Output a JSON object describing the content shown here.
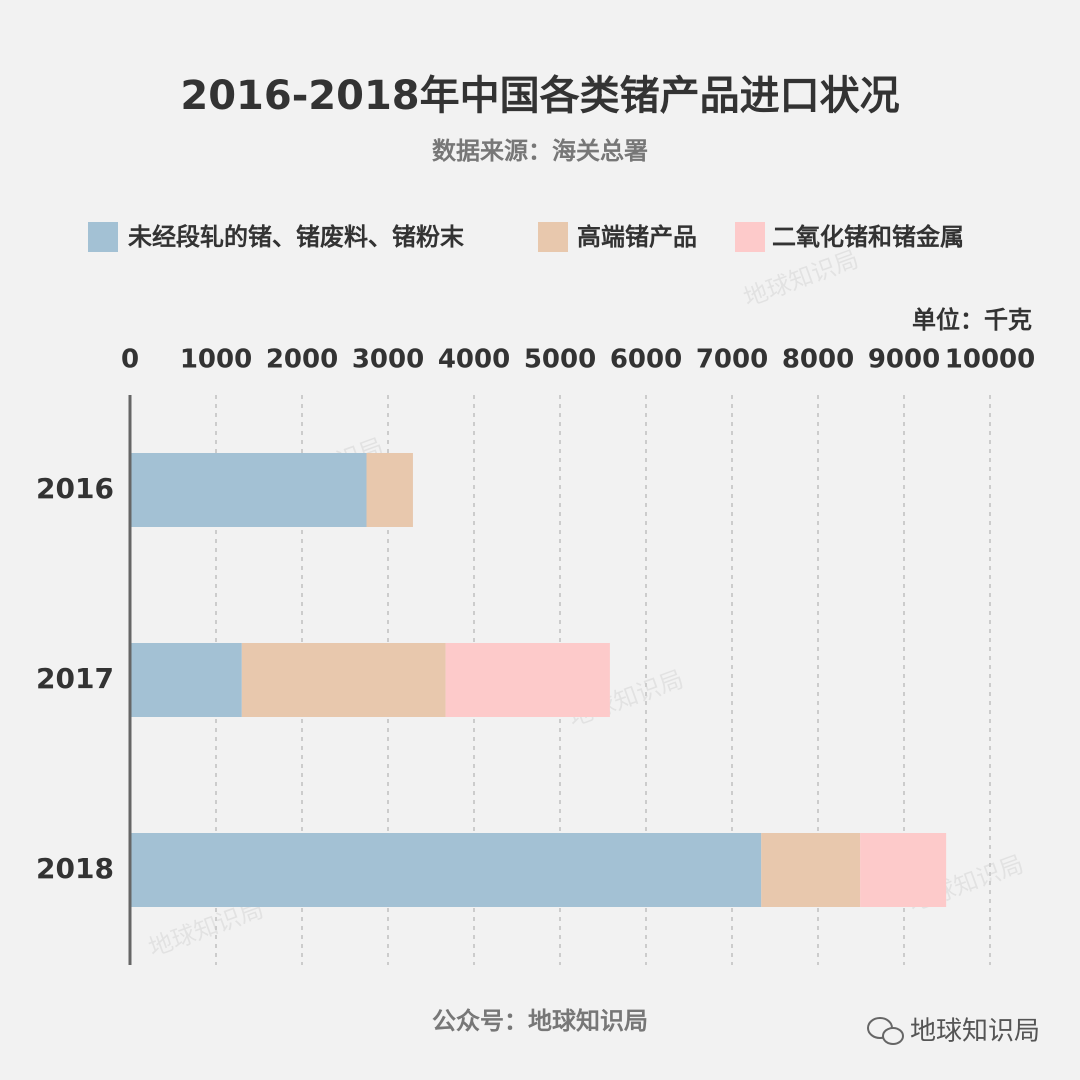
{
  "chart_data": {
    "type": "stacked-barh",
    "title": "2016-2018年中国各类锗产品进口状况",
    "subtitle": "数据来源：海关总署",
    "unit": "单位：千克",
    "footer": "公众号：地球知识局",
    "watermark": "地球知识局",
    "categories": [
      "2016",
      "2017",
      "2018"
    ],
    "series": [
      {
        "name": "未经段轧的锗、锗废料、锗粉末",
        "color": "#a3c1d4",
        "values": [
          2750,
          1300,
          7340
        ]
      },
      {
        "name": "高端锗产品",
        "color": "#e8c8ad",
        "values": [
          540,
          2370,
          1150
        ]
      },
      {
        "name": "二氧化锗和锗金属",
        "color": "#fdcaca",
        "values": [
          0,
          1910,
          1000
        ]
      }
    ],
    "xlim": [
      0,
      10000
    ],
    "xticks": [
      0,
      1000,
      2000,
      3000,
      4000,
      5000,
      6000,
      7000,
      8000,
      9000,
      10000
    ],
    "grid": true
  }
}
